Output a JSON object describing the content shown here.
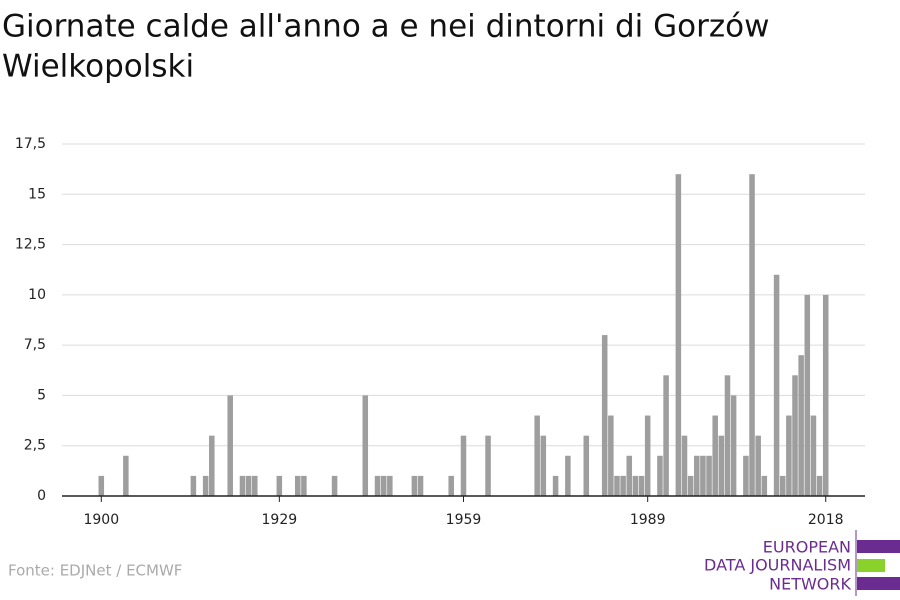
{
  "chart_data": {
    "type": "bar",
    "title": "Giornate calde all'anno a e nei dintorni di Gorzów",
    "title_line2": "Wielkopolski",
    "source": "Fonte: EDJNet / ECMWF",
    "logo": [
      "EUROPEAN",
      "DATA JOURNALISM",
      "NETWORK"
    ],
    "color": "#9e9e9e",
    "x": [
      1900,
      1901,
      1902,
      1903,
      1904,
      1905,
      1906,
      1907,
      1908,
      1909,
      1910,
      1911,
      1912,
      1913,
      1914,
      1915,
      1916,
      1917,
      1918,
      1919,
      1920,
      1921,
      1922,
      1923,
      1924,
      1925,
      1926,
      1927,
      1928,
      1929,
      1930,
      1931,
      1932,
      1933,
      1934,
      1935,
      1936,
      1937,
      1938,
      1939,
      1940,
      1941,
      1942,
      1943,
      1944,
      1945,
      1946,
      1947,
      1948,
      1949,
      1950,
      1951,
      1952,
      1953,
      1954,
      1955,
      1956,
      1957,
      1958,
      1959,
      1960,
      1961,
      1962,
      1963,
      1964,
      1965,
      1966,
      1967,
      1968,
      1969,
      1970,
      1971,
      1972,
      1973,
      1974,
      1975,
      1976,
      1977,
      1978,
      1979,
      1980,
      1981,
      1982,
      1983,
      1984,
      1985,
      1986,
      1987,
      1988,
      1989,
      1990,
      1991,
      1992,
      1993,
      1994,
      1995,
      1996,
      1997,
      1998,
      1999,
      2000,
      2001,
      2002,
      2003,
      2004,
      2005,
      2006,
      2007,
      2008,
      2009,
      2010,
      2011,
      2012,
      2013,
      2014,
      2015,
      2016,
      2017,
      2018
    ],
    "values": [
      1,
      0,
      0,
      0,
      2,
      0,
      0,
      0,
      0,
      0,
      0,
      0,
      0,
      0,
      0,
      1,
      0,
      1,
      3,
      0,
      0,
      5,
      0,
      1,
      1,
      1,
      0,
      0,
      0,
      1,
      0,
      0,
      1,
      1,
      0,
      0,
      0,
      0,
      1,
      0,
      0,
      0,
      0,
      5,
      0,
      1,
      1,
      1,
      0,
      0,
      0,
      1,
      1,
      0,
      0,
      0,
      0,
      1,
      0,
      3,
      0,
      0,
      0,
      3,
      0,
      0,
      0,
      0,
      0,
      0,
      0,
      4,
      3,
      0,
      1,
      0,
      2,
      0,
      0,
      3,
      0,
      0,
      8,
      4,
      1,
      1,
      2,
      1,
      1,
      4,
      0,
      2,
      6,
      0,
      16,
      3,
      1,
      2,
      2,
      2,
      4,
      3,
      6,
      5,
      0,
      2,
      16,
      3,
      1,
      0,
      11,
      1,
      4,
      6,
      7,
      10,
      4,
      1,
      10
    ],
    "xlim": [
      1893.6,
      2024.4
    ],
    "xticks": [
      1900,
      1929,
      1959,
      1989,
      2018
    ],
    "ylim": [
      0,
      17.5
    ],
    "yticks": [
      0,
      {
        "value": 2.5,
        "label": "2,5"
      },
      5,
      {
        "value": 7.5,
        "label": "7,5"
      },
      10,
      {
        "value": 12.5,
        "label": "12,5"
      },
      15,
      {
        "value": 17.5,
        "label": "17,5"
      }
    ],
    "grid": true
  }
}
